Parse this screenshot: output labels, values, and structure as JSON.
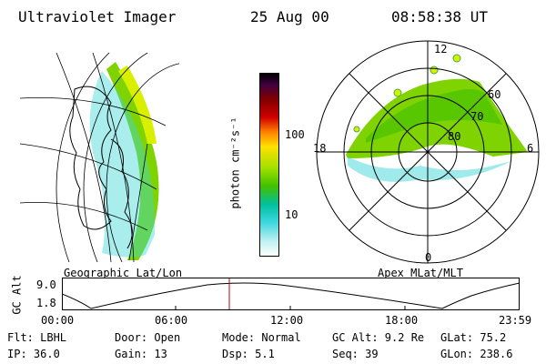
{
  "header": {
    "instrument": "Ultraviolet Imager",
    "date": "25 Aug 00",
    "time": "08:58:38 UT"
  },
  "panels": {
    "geo_label": "Geographic Lat/Lon",
    "apex_label": "Apex MLat/MLT"
  },
  "colorbar": {
    "unit": "photon cm⁻²s⁻¹",
    "ticks": [
      "100",
      "10"
    ]
  },
  "polar": {
    "mlt_labels": [
      "12",
      "18",
      "6",
      "0"
    ],
    "mlat_labels": [
      "60",
      "70",
      "80"
    ]
  },
  "altitude_plot": {
    "axis_label": "GC Alt",
    "y_ticks": [
      "9.0",
      "1.8"
    ],
    "x_ticks": [
      "00:00",
      "06:00",
      "12:00",
      "18:00",
      "23:59"
    ]
  },
  "info": {
    "flt": "Flt: LBHL",
    "door": "Door: Open",
    "mode": "Mode: Normal",
    "gcalt": "GC Alt: 9.2 Re",
    "glat": "GLat:  75.2",
    "ip": "IP: 36.0",
    "gain": "Gain: 13",
    "dsp": "Dsp:    5.1",
    "seq": "Seq: 39",
    "glon": "GLon: 238.6"
  },
  "colors": {
    "aurora_green": "#7fd300",
    "aurora_yellow": "#d8f000",
    "aurora_cyan": "#40d8d8",
    "marker": "#c00000"
  }
}
